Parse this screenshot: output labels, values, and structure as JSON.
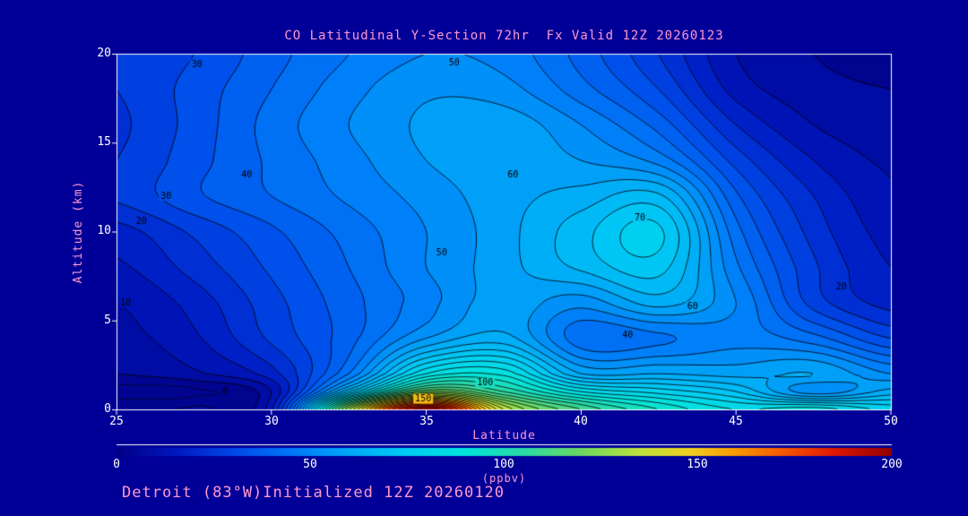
{
  "colors": {
    "background": "#000099",
    "text_pink": "#ff99cc",
    "text_white": "#ffffff",
    "frame": "#ffffff",
    "contour_line": "#000000"
  },
  "footer": {
    "text": "Detroit (83°W)Initialized 12Z 20260120"
  },
  "chart_data": {
    "type": "heatmap",
    "subtype": "filled-contour-cross-section",
    "title": "CO Latitudinal Y-Section 72hr  Fx Valid 12Z 20260123",
    "xlabel": "Latitude",
    "ylabel": "Altitude (km)",
    "x_range": [
      25,
      50
    ],
    "y_range": [
      0,
      20
    ],
    "x_ticks": [
      25,
      30,
      35,
      40,
      45,
      50
    ],
    "y_ticks": [
      20,
      15,
      10,
      5,
      0
    ],
    "grid": false,
    "contour_interval": 5,
    "lats": [
      25,
      27.5,
      30,
      32.5,
      35,
      37.5,
      40,
      42.5,
      45,
      47.5,
      50
    ],
    "alts_km": [
      0,
      1,
      2,
      4,
      6,
      8,
      10,
      12,
      14,
      16,
      18,
      20
    ],
    "values_ppbv": [
      [
        4,
        6,
        14,
        130,
        200,
        135,
        110,
        95,
        85,
        88,
        78
      ],
      [
        -2,
        -1,
        10,
        70,
        120,
        105,
        85,
        78,
        70,
        52,
        62
      ],
      [
        5,
        9,
        18,
        45,
        85,
        88,
        60,
        60,
        58,
        60,
        50
      ],
      [
        8,
        14,
        26,
        38,
        55,
        62,
        42,
        44,
        48,
        42,
        30
      ],
      [
        10,
        17,
        28,
        38,
        48,
        58,
        52,
        62,
        50,
        28,
        18
      ],
      [
        14,
        22,
        31,
        40,
        50,
        58,
        66,
        72,
        46,
        26,
        15
      ],
      [
        18,
        26,
        34,
        42,
        50,
        58,
        68,
        76,
        42,
        23,
        13
      ],
      [
        26,
        34,
        40,
        46,
        52,
        58,
        62,
        66,
        36,
        20,
        11
      ],
      [
        25,
        33,
        41,
        48,
        55,
        58,
        55,
        48,
        28,
        15,
        9
      ],
      [
        24,
        32,
        42,
        50,
        56,
        58,
        50,
        38,
        20,
        10,
        7
      ],
      [
        25,
        32,
        40,
        48,
        54,
        52,
        42,
        30,
        13,
        7,
        5
      ],
      [
        26,
        30,
        38,
        45,
        50,
        48,
        38,
        25,
        10,
        5,
        3
      ]
    ],
    "contour_labels": [
      {
        "value": 30,
        "lat": 27.6,
        "alt_km": 19.4
      },
      {
        "value": 50,
        "lat": 35.9,
        "alt_km": 19.5
      },
      {
        "value": 60,
        "lat": 37.8,
        "alt_km": 13.2
      },
      {
        "value": 70,
        "lat": 41.9,
        "alt_km": 10.8
      },
      {
        "value": 50,
        "lat": 35.5,
        "alt_km": 8.8
      },
      {
        "value": 40,
        "lat": 29.2,
        "alt_km": 13.2
      },
      {
        "value": 30,
        "lat": 26.6,
        "alt_km": 12.0
      },
      {
        "value": 20,
        "lat": 25.8,
        "alt_km": 10.6
      },
      {
        "value": 10,
        "lat": 25.3,
        "alt_km": 6.0
      },
      {
        "value": 40,
        "lat": 41.5,
        "alt_km": 4.2
      },
      {
        "value": 60,
        "lat": 43.6,
        "alt_km": 5.8
      },
      {
        "value": 20,
        "lat": 48.4,
        "alt_km": 6.9
      },
      {
        "value": 100,
        "lat": 36.9,
        "alt_km": 1.5
      },
      {
        "value": 150,
        "lat": 34.9,
        "alt_km": 0.6
      },
      {
        "value": 0,
        "lat": 28.5,
        "alt_km": 1.0
      }
    ],
    "colormap": [
      {
        "v": 0,
        "c": "#000085"
      },
      {
        "v": 15,
        "c": "#0018c0"
      },
      {
        "v": 30,
        "c": "#0048e8"
      },
      {
        "v": 45,
        "c": "#0078f8"
      },
      {
        "v": 60,
        "c": "#00a8f8"
      },
      {
        "v": 75,
        "c": "#00ccf4"
      },
      {
        "v": 90,
        "c": "#00e4dc"
      },
      {
        "v": 105,
        "c": "#2cd8a4"
      },
      {
        "v": 120,
        "c": "#6cd860"
      },
      {
        "v": 135,
        "c": "#c0e03c"
      },
      {
        "v": 148,
        "c": "#f0d020"
      },
      {
        "v": 160,
        "c": "#f89800"
      },
      {
        "v": 172,
        "c": "#f85800"
      },
      {
        "v": 185,
        "c": "#e01800"
      },
      {
        "v": 200,
        "c": "#900000"
      }
    ],
    "colorbar": {
      "min": 0,
      "max": 200,
      "ticks": [
        0,
        50,
        100,
        150,
        200
      ],
      "unit": "(ppbv)"
    }
  }
}
